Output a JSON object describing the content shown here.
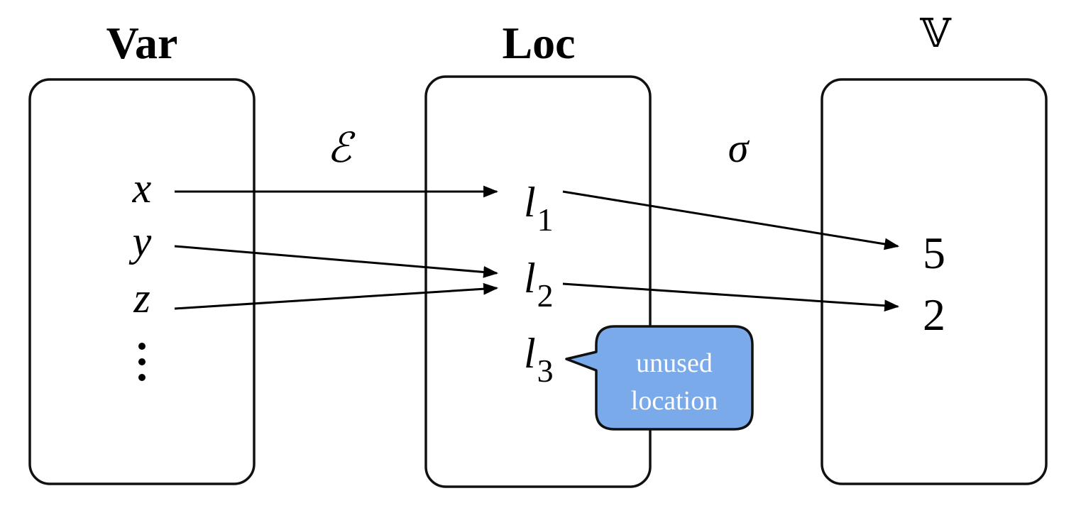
{
  "sets": {
    "var": {
      "title": "Var",
      "items": [
        "x",
        "y",
        "z",
        "⋮"
      ]
    },
    "loc": {
      "title": "Loc",
      "items": [
        {
          "base": "l",
          "sub": "1"
        },
        {
          "base": "l",
          "sub": "2"
        },
        {
          "base": "l",
          "sub": "3"
        }
      ]
    },
    "values": {
      "title": "𝕍",
      "items": [
        "5",
        "2"
      ]
    }
  },
  "maps": {
    "environment": "ℰ",
    "store": "σ"
  },
  "callout": {
    "line1": "unused",
    "line2": "location",
    "color": "#7aaaea"
  },
  "mappings": {
    "environment": [
      [
        "x",
        "l1"
      ],
      [
        "y",
        "l2"
      ],
      [
        "z",
        "l2"
      ]
    ],
    "store": [
      [
        "l1",
        "5"
      ],
      [
        "l2",
        "2"
      ]
    ]
  }
}
